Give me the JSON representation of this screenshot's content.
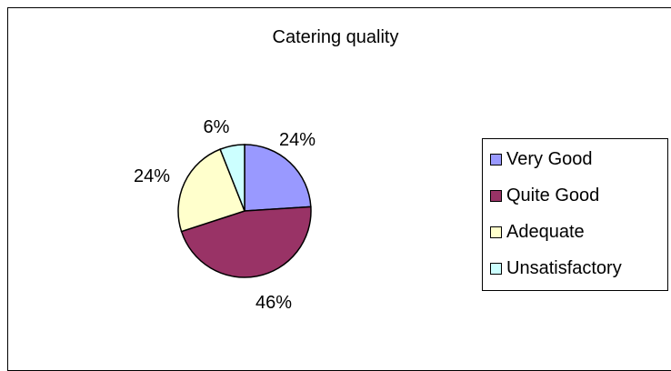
{
  "chart_data": {
    "type": "pie",
    "title": "Catering quality",
    "categories": [
      "Very Good",
      "Quite Good",
      "Adequate",
      "Unsatisfactory"
    ],
    "values": [
      24,
      46,
      24,
      6
    ],
    "labels": [
      "24%",
      "46%",
      "24%",
      "6%"
    ],
    "colors": [
      "#9999ff",
      "#993366",
      "#ffffcc",
      "#ccffff"
    ],
    "legend_position": "right"
  }
}
